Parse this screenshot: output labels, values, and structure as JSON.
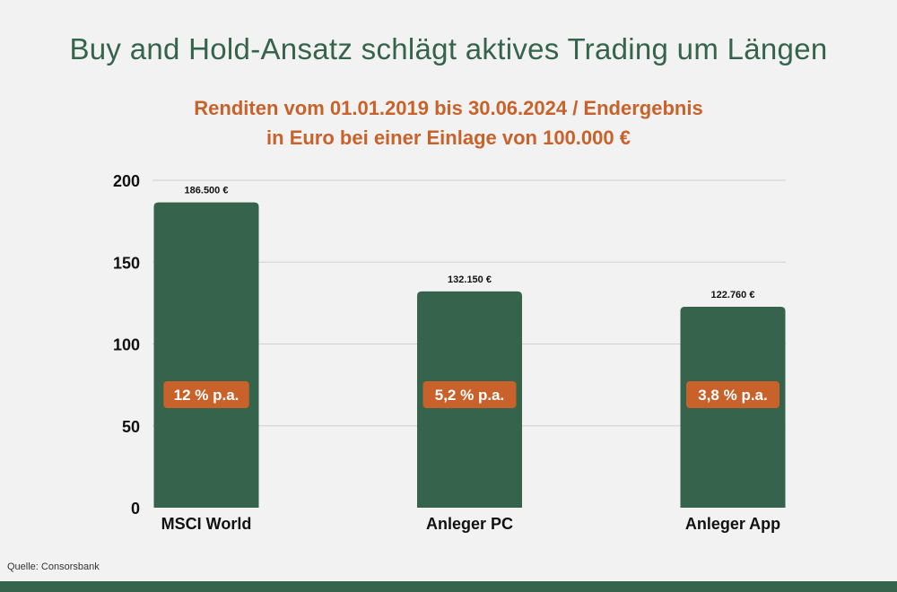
{
  "title": "Buy and Hold-Ansatz schlägt aktives Trading um Längen",
  "subtitle": {
    "line1": "Renditen vom 01.01.2019 bis 30.06.2024 / Endergebnis",
    "line2": "in Euro bei einer Einlage von 100.000 €"
  },
  "source": "Quelle: Consorsbank",
  "colors": {
    "bar": "#35634b",
    "badge": "#c8622a",
    "title": "#35634b",
    "subtitle": "#c8622a",
    "grid": "#cfcfcf",
    "background": "#f2f2f2"
  },
  "chart_data": {
    "type": "bar",
    "categories": [
      "MSCI World",
      "Anleger PC",
      "Anleger App"
    ],
    "values": [
      186.5,
      132.15,
      122.76
    ],
    "value_labels": [
      "186.500 €",
      "132.150 €",
      "122.760 €"
    ],
    "badges": [
      "12 % p.a.",
      "5,2 % p.a.",
      "3,8 % p.a."
    ],
    "yticks": [
      0,
      50,
      100,
      150,
      200
    ],
    "ylim": [
      0,
      200
    ],
    "grid": true,
    "legend": "none"
  }
}
